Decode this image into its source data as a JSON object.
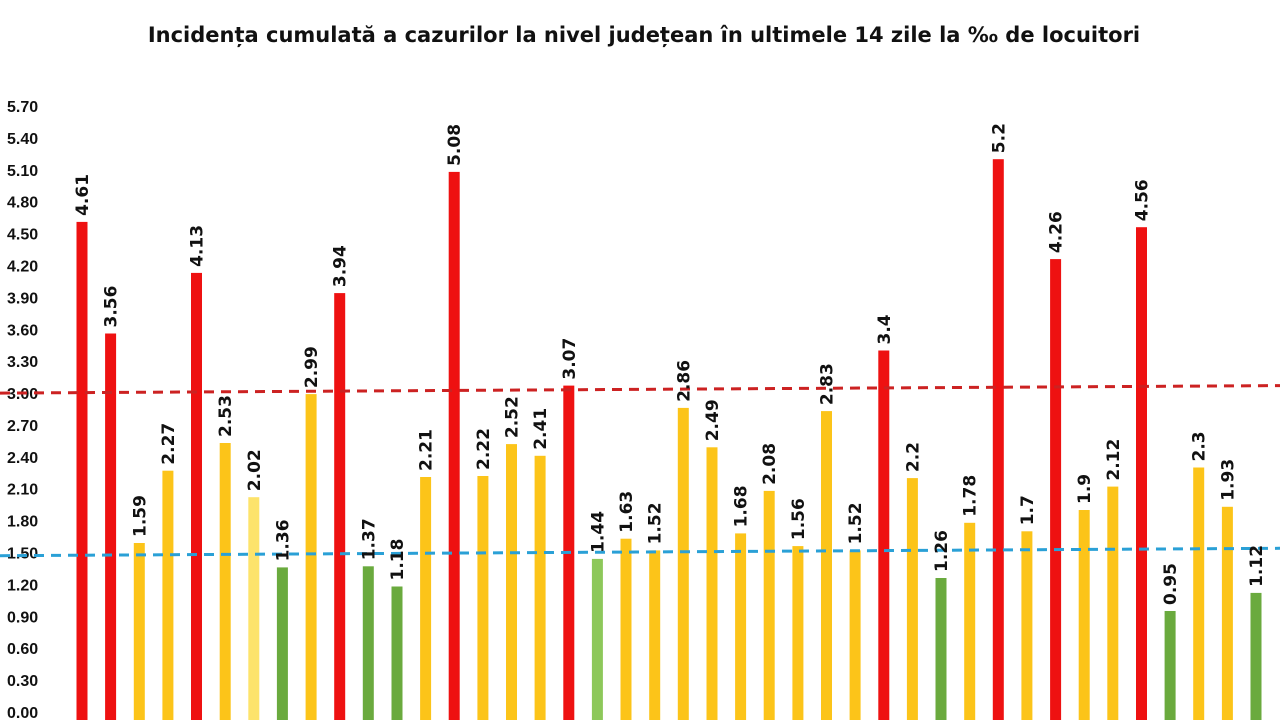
{
  "chart_data": {
    "type": "bar",
    "title": "Incidența cumulată a cazurilor la nivel județean în ultimele 14 zile la ‰ de locuitori",
    "xlabel": "",
    "ylabel": "",
    "ylim": [
      0,
      5.7
    ],
    "yticks": [
      "0.00",
      "0.30",
      "0.60",
      "0.90",
      "1.20",
      "1.50",
      "1.80",
      "2.10",
      "2.40",
      "2.70",
      "3.00",
      "3.30",
      "3.60",
      "3.90",
      "4.20",
      "4.50",
      "4.80",
      "5.10",
      "5.40",
      "5.70"
    ],
    "grid": false,
    "legend": "none",
    "values": [
      4.61,
      3.56,
      1.59,
      2.27,
      4.13,
      2.53,
      2.02,
      1.36,
      2.99,
      3.94,
      1.37,
      1.18,
      2.21,
      5.08,
      2.22,
      2.52,
      2.41,
      3.07,
      1.44,
      1.63,
      1.52,
      2.86,
      2.49,
      1.68,
      2.08,
      1.56,
      2.83,
      1.52,
      3.4,
      2.2,
      1.26,
      1.78,
      5.2,
      1.7,
      4.26,
      1.9,
      2.12,
      4.56,
      0.95,
      2.3,
      1.93,
      1.12
    ],
    "labels": [
      "4.61",
      "3.56",
      "1.59",
      "2.27",
      "4.13",
      "2.53",
      "2.02",
      "1.36",
      "2.99",
      "3.94",
      "1.37",
      "1.18",
      "2.21",
      "5.08",
      "2.22",
      "2.52",
      "2.41",
      "3.07",
      "1.44",
      "1.63",
      "1.52",
      "2.86",
      "2.49",
      "1.68",
      "2.08",
      "1.56",
      "2.83",
      "1.52",
      "3.4",
      "2.2",
      "1.26",
      "1.78",
      "5.2",
      "1.7",
      "4.26",
      "1.9",
      "2.12",
      "4.56",
      "0.95",
      "2.3",
      "1.93",
      "1.12"
    ],
    "bar_colors": [
      "#ee1111",
      "#ee1111",
      "#fcc419",
      "#fcc419",
      "#ee1111",
      "#fcc419",
      "#fde36b",
      "#6aaa3e",
      "#fcc419",
      "#ee1111",
      "#6aaa3e",
      "#6aaa3e",
      "#fcc419",
      "#ee1111",
      "#fcc419",
      "#fcc419",
      "#fcc419",
      "#ee1111",
      "#8dc85a",
      "#fcc419",
      "#fcc419",
      "#fcc419",
      "#fcc419",
      "#fcc419",
      "#fcc419",
      "#fcc419",
      "#fcc419",
      "#fcc419",
      "#ee1111",
      "#fcc419",
      "#6aaa3e",
      "#fcc419",
      "#ee1111",
      "#fcc419",
      "#ee1111",
      "#fcc419",
      "#fcc419",
      "#ee1111",
      "#6aaa3e",
      "#fcc419",
      "#fcc419",
      "#6aaa3e"
    ],
    "reference_lines": [
      {
        "value_start": 3.0,
        "value_end": 3.07,
        "color": "#cc2222",
        "style": "dashed"
      },
      {
        "value_start": 1.47,
        "value_end": 1.54,
        "color": "#2aa0d6",
        "style": "dashed"
      }
    ]
  }
}
